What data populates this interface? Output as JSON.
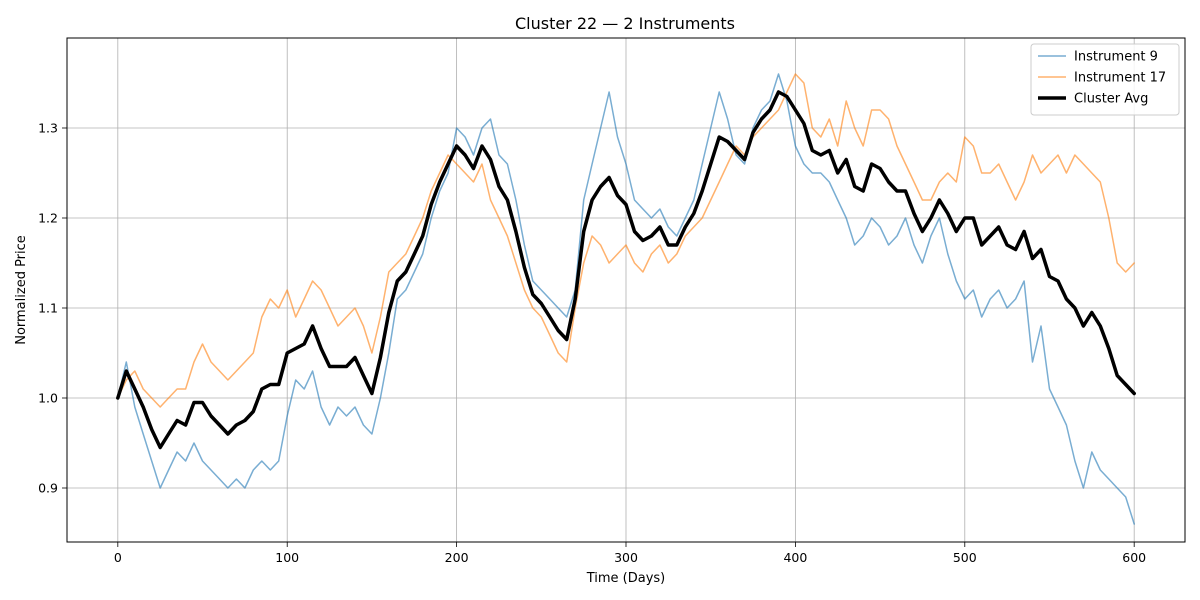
{
  "chart_data": {
    "type": "line",
    "title": "Cluster 22 — 2 Instruments",
    "xlabel": "Time (Days)",
    "ylabel": "Normalized Price",
    "xlim": [
      -30,
      630
    ],
    "ylim": [
      0.84,
      1.4
    ],
    "xticks": [
      0,
      100,
      200,
      300,
      400,
      500,
      600
    ],
    "yticks": [
      0.9,
      1.0,
      1.1,
      1.2,
      1.3
    ],
    "ytick_labels": [
      "0.9",
      "1.0",
      "1.1",
      "1.2",
      "1.3"
    ],
    "grid": true,
    "legend_position": "upper-right",
    "series": [
      {
        "name": "Instrument 9",
        "color": "#1f77b4",
        "opacity": 0.6,
        "width": 1.5,
        "x": [
          0,
          5,
          10,
          15,
          20,
          25,
          30,
          35,
          40,
          45,
          50,
          55,
          60,
          65,
          70,
          75,
          80,
          85,
          90,
          95,
          100,
          105,
          110,
          115,
          120,
          125,
          130,
          135,
          140,
          145,
          150,
          155,
          160,
          165,
          170,
          175,
          180,
          185,
          190,
          195,
          200,
          205,
          210,
          215,
          220,
          225,
          230,
          235,
          240,
          245,
          250,
          255,
          260,
          265,
          270,
          275,
          280,
          285,
          290,
          295,
          300,
          305,
          310,
          315,
          320,
          325,
          330,
          335,
          340,
          345,
          350,
          355,
          360,
          365,
          370,
          375,
          380,
          385,
          390,
          395,
          400,
          405,
          410,
          415,
          420,
          425,
          430,
          435,
          440,
          445,
          450,
          455,
          460,
          465,
          470,
          475,
          480,
          485,
          490,
          495,
          500,
          505,
          510,
          515,
          520,
          525,
          530,
          535,
          540,
          545,
          550,
          555,
          560,
          565,
          570,
          575,
          580,
          585,
          590,
          595,
          600
        ],
        "y": [
          1.0,
          1.04,
          0.99,
          0.96,
          0.93,
          0.9,
          0.92,
          0.94,
          0.93,
          0.95,
          0.93,
          0.92,
          0.91,
          0.9,
          0.91,
          0.9,
          0.92,
          0.93,
          0.92,
          0.93,
          0.98,
          1.02,
          1.01,
          1.03,
          0.99,
          0.97,
          0.99,
          0.98,
          0.99,
          0.97,
          0.96,
          1.0,
          1.05,
          1.11,
          1.12,
          1.14,
          1.16,
          1.2,
          1.23,
          1.25,
          1.3,
          1.29,
          1.27,
          1.3,
          1.31,
          1.27,
          1.26,
          1.22,
          1.17,
          1.13,
          1.12,
          1.11,
          1.1,
          1.09,
          1.12,
          1.22,
          1.26,
          1.3,
          1.34,
          1.29,
          1.26,
          1.22,
          1.21,
          1.2,
          1.21,
          1.19,
          1.18,
          1.2,
          1.22,
          1.26,
          1.3,
          1.34,
          1.31,
          1.27,
          1.26,
          1.3,
          1.32,
          1.33,
          1.36,
          1.33,
          1.28,
          1.26,
          1.25,
          1.25,
          1.24,
          1.22,
          1.2,
          1.17,
          1.18,
          1.2,
          1.19,
          1.17,
          1.18,
          1.2,
          1.17,
          1.15,
          1.18,
          1.2,
          1.16,
          1.13,
          1.11,
          1.12,
          1.09,
          1.11,
          1.12,
          1.1,
          1.11,
          1.13,
          1.04,
          1.08,
          1.01,
          0.99,
          0.97,
          0.93,
          0.9,
          0.94,
          0.92,
          0.91,
          0.9,
          0.89,
          0.86
        ]
      },
      {
        "name": "Instrument 17",
        "color": "#ff7f0e",
        "opacity": 0.6,
        "width": 1.5,
        "x": [
          0,
          5,
          10,
          15,
          20,
          25,
          30,
          35,
          40,
          45,
          50,
          55,
          60,
          65,
          70,
          75,
          80,
          85,
          90,
          95,
          100,
          105,
          110,
          115,
          120,
          125,
          130,
          135,
          140,
          145,
          150,
          155,
          160,
          165,
          170,
          175,
          180,
          185,
          190,
          195,
          200,
          205,
          210,
          215,
          220,
          225,
          230,
          235,
          240,
          245,
          250,
          255,
          260,
          265,
          270,
          275,
          280,
          285,
          290,
          295,
          300,
          305,
          310,
          315,
          320,
          325,
          330,
          335,
          340,
          345,
          350,
          355,
          360,
          365,
          370,
          375,
          380,
          385,
          390,
          395,
          400,
          405,
          410,
          415,
          420,
          425,
          430,
          435,
          440,
          445,
          450,
          455,
          460,
          465,
          470,
          475,
          480,
          485,
          490,
          495,
          500,
          505,
          510,
          515,
          520,
          525,
          530,
          535,
          540,
          545,
          550,
          555,
          560,
          565,
          570,
          575,
          580,
          585,
          590,
          595,
          600
        ],
        "y": [
          1.0,
          1.02,
          1.03,
          1.01,
          1.0,
          0.99,
          1.0,
          1.01,
          1.01,
          1.04,
          1.06,
          1.04,
          1.03,
          1.02,
          1.03,
          1.04,
          1.05,
          1.09,
          1.11,
          1.1,
          1.12,
          1.09,
          1.11,
          1.13,
          1.12,
          1.1,
          1.08,
          1.09,
          1.1,
          1.08,
          1.05,
          1.09,
          1.14,
          1.15,
          1.16,
          1.18,
          1.2,
          1.23,
          1.25,
          1.27,
          1.26,
          1.25,
          1.24,
          1.26,
          1.22,
          1.2,
          1.18,
          1.15,
          1.12,
          1.1,
          1.09,
          1.07,
          1.05,
          1.04,
          1.1,
          1.15,
          1.18,
          1.17,
          1.15,
          1.16,
          1.17,
          1.15,
          1.14,
          1.16,
          1.17,
          1.15,
          1.16,
          1.18,
          1.19,
          1.2,
          1.22,
          1.24,
          1.26,
          1.28,
          1.27,
          1.29,
          1.3,
          1.31,
          1.32,
          1.34,
          1.36,
          1.35,
          1.3,
          1.29,
          1.31,
          1.28,
          1.33,
          1.3,
          1.28,
          1.32,
          1.32,
          1.31,
          1.28,
          1.26,
          1.24,
          1.22,
          1.22,
          1.24,
          1.25,
          1.24,
          1.29,
          1.28,
          1.25,
          1.25,
          1.26,
          1.24,
          1.22,
          1.24,
          1.27,
          1.25,
          1.26,
          1.27,
          1.25,
          1.27,
          1.26,
          1.25,
          1.24,
          1.2,
          1.15,
          1.14,
          1.15
        ]
      },
      {
        "name": "Cluster Avg",
        "color": "#000000",
        "opacity": 1,
        "width": 3.5,
        "x": [
          0,
          5,
          10,
          15,
          20,
          25,
          30,
          35,
          40,
          45,
          50,
          55,
          60,
          65,
          70,
          75,
          80,
          85,
          90,
          95,
          100,
          105,
          110,
          115,
          120,
          125,
          130,
          135,
          140,
          145,
          150,
          155,
          160,
          165,
          170,
          175,
          180,
          185,
          190,
          195,
          200,
          205,
          210,
          215,
          220,
          225,
          230,
          235,
          240,
          245,
          250,
          255,
          260,
          265,
          270,
          275,
          280,
          285,
          290,
          295,
          300,
          305,
          310,
          315,
          320,
          325,
          330,
          335,
          340,
          345,
          350,
          355,
          360,
          365,
          370,
          375,
          380,
          385,
          390,
          395,
          400,
          405,
          410,
          415,
          420,
          425,
          430,
          435,
          440,
          445,
          450,
          455,
          460,
          465,
          470,
          475,
          480,
          485,
          490,
          495,
          500,
          505,
          510,
          515,
          520,
          525,
          530,
          535,
          540,
          545,
          550,
          555,
          560,
          565,
          570,
          575,
          580,
          585,
          590,
          595,
          600
        ],
        "y": [
          1.0,
          1.03,
          1.01,
          0.99,
          0.965,
          0.945,
          0.96,
          0.975,
          0.97,
          0.995,
          0.995,
          0.98,
          0.97,
          0.96,
          0.97,
          0.975,
          0.985,
          1.01,
          1.015,
          1.015,
          1.05,
          1.055,
          1.06,
          1.08,
          1.055,
          1.035,
          1.035,
          1.035,
          1.045,
          1.025,
          1.005,
          1.045,
          1.095,
          1.13,
          1.14,
          1.16,
          1.18,
          1.215,
          1.24,
          1.26,
          1.28,
          1.27,
          1.255,
          1.28,
          1.265,
          1.235,
          1.22,
          1.185,
          1.145,
          1.115,
          1.105,
          1.09,
          1.075,
          1.065,
          1.11,
          1.185,
          1.22,
          1.235,
          1.245,
          1.225,
          1.215,
          1.185,
          1.175,
          1.18,
          1.19,
          1.17,
          1.17,
          1.19,
          1.205,
          1.23,
          1.26,
          1.29,
          1.285,
          1.275,
          1.265,
          1.295,
          1.31,
          1.32,
          1.34,
          1.335,
          1.32,
          1.305,
          1.275,
          1.27,
          1.275,
          1.25,
          1.265,
          1.235,
          1.23,
          1.26,
          1.255,
          1.24,
          1.23,
          1.23,
          1.205,
          1.185,
          1.2,
          1.22,
          1.205,
          1.185,
          1.2,
          1.2,
          1.17,
          1.18,
          1.19,
          1.17,
          1.165,
          1.185,
          1.155,
          1.165,
          1.135,
          1.13,
          1.11,
          1.1,
          1.08,
          1.095,
          1.08,
          1.055,
          1.025,
          1.015,
          1.005
        ]
      }
    ]
  }
}
